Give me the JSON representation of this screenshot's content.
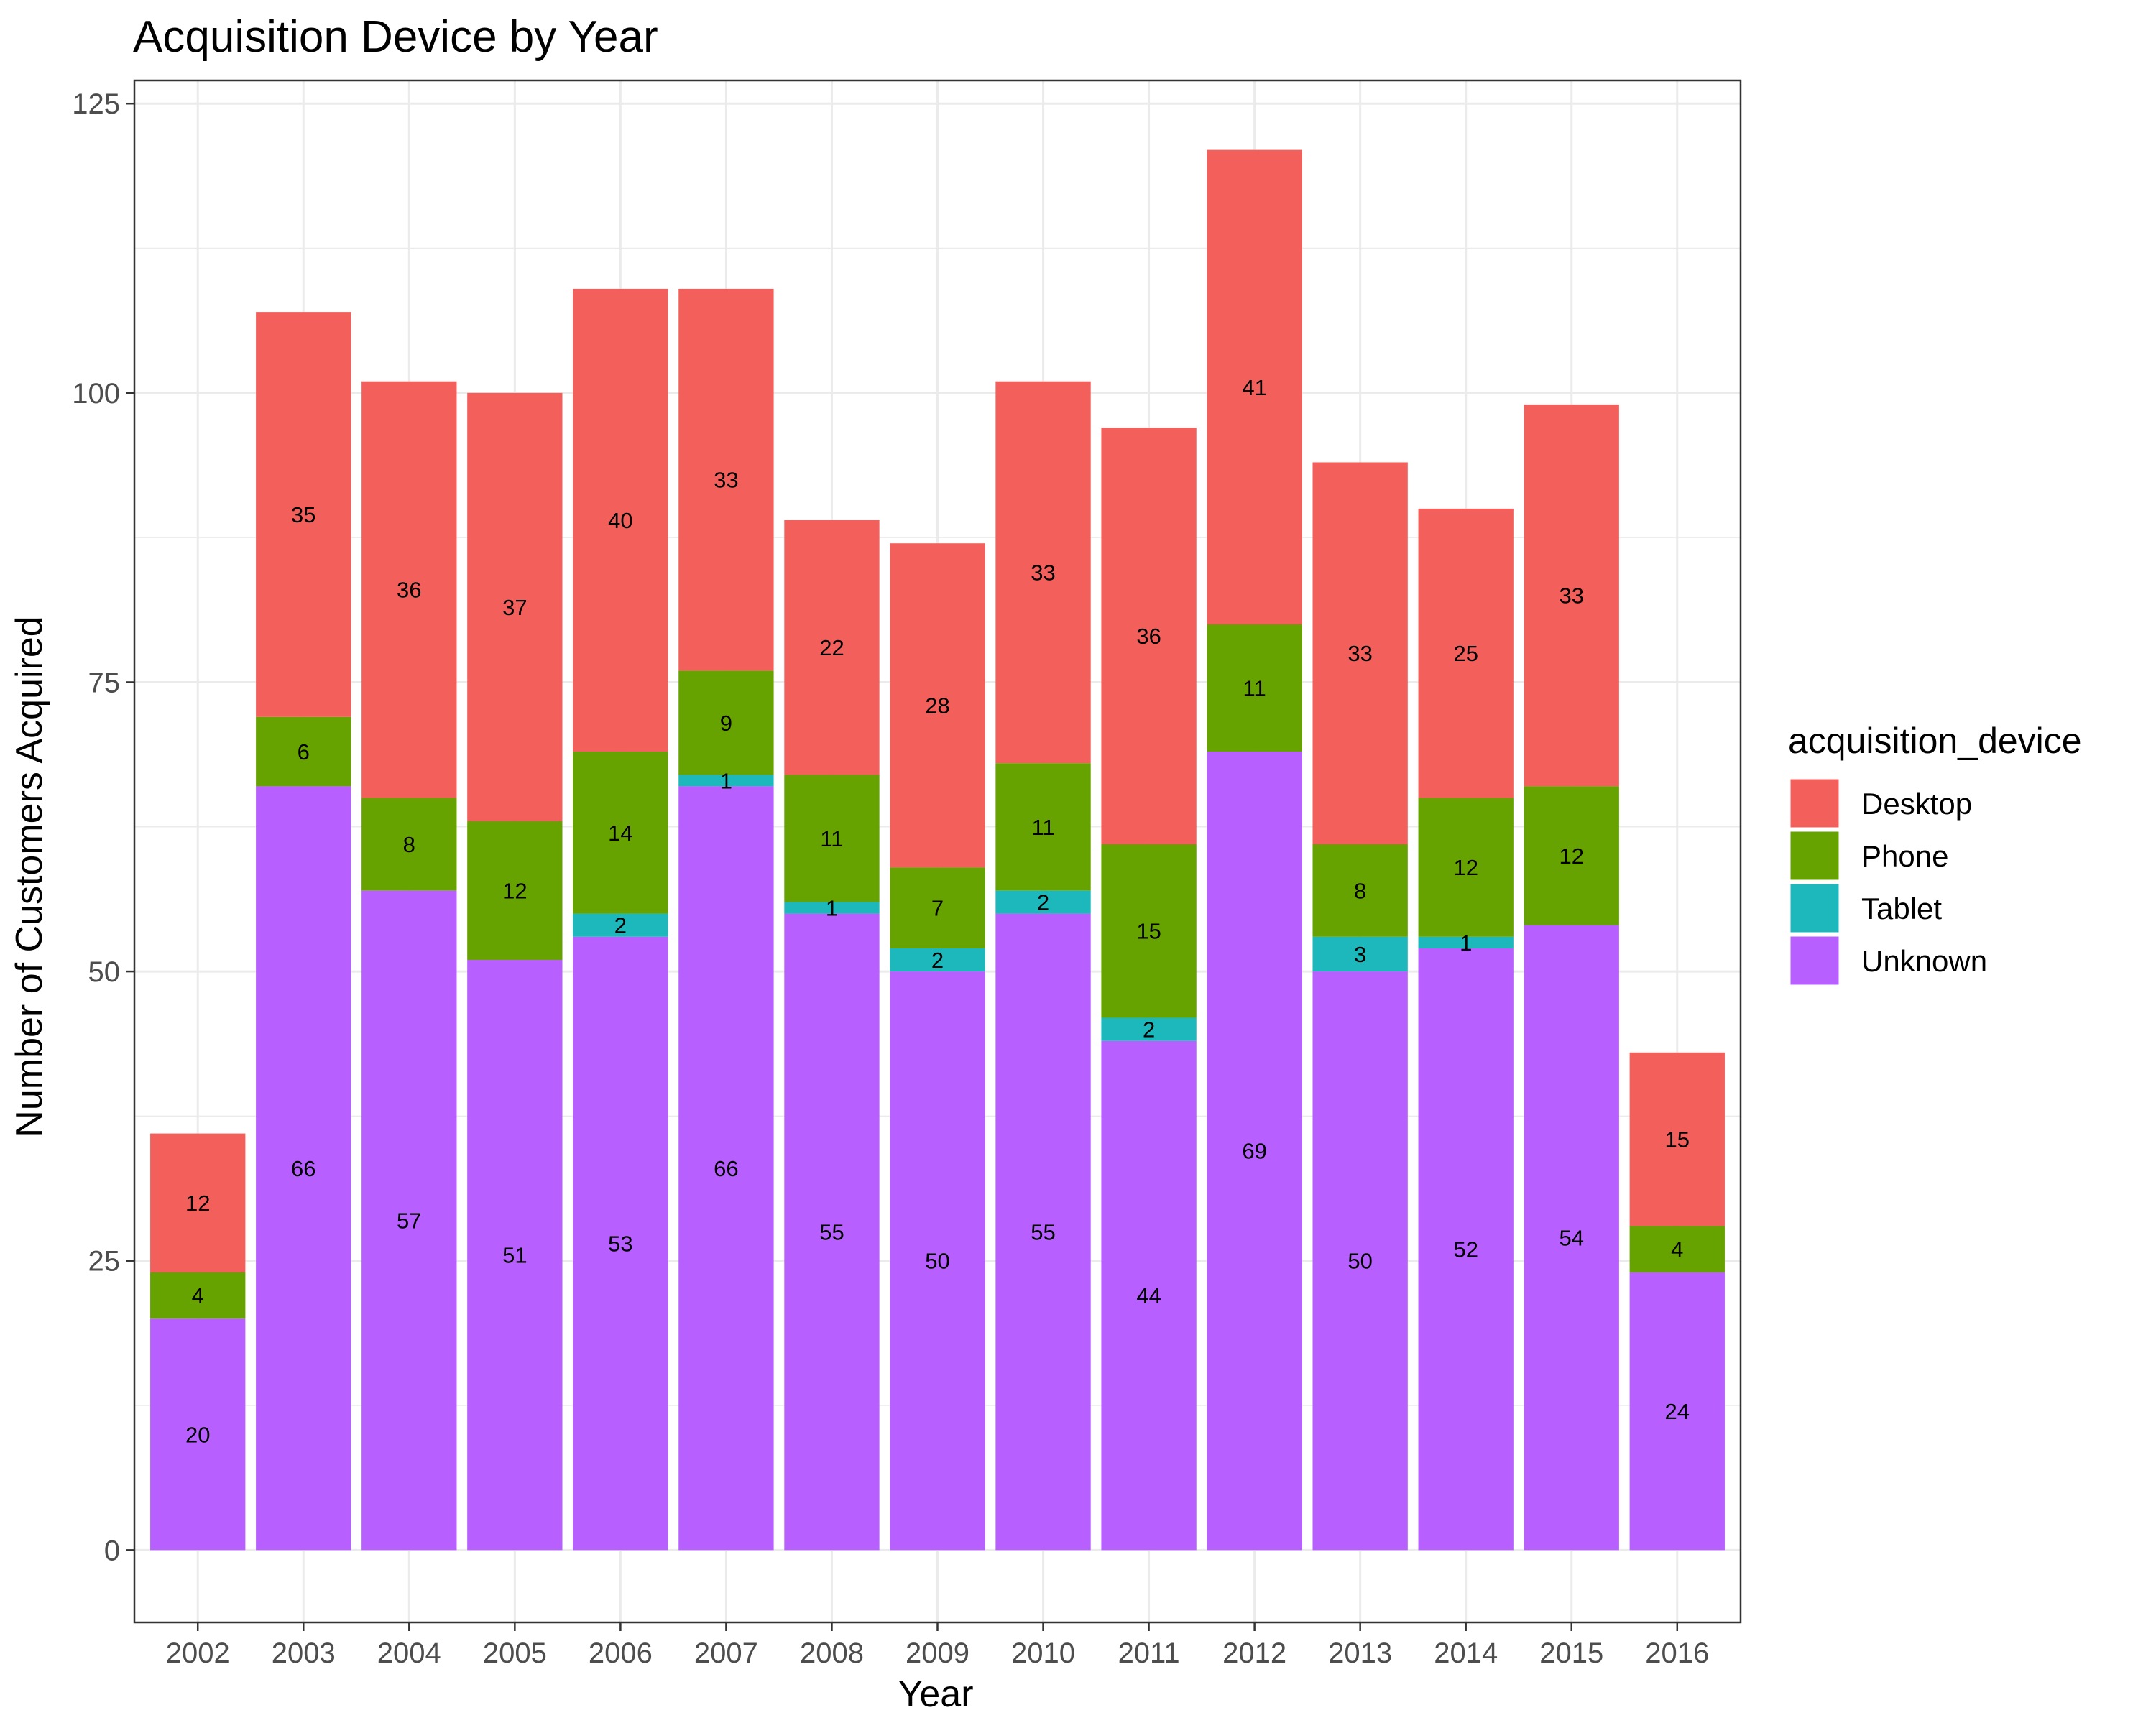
{
  "chart_data": {
    "type": "bar",
    "stacked": true,
    "title": "Acquisition Device by Year",
    "xlabel": "Year",
    "ylabel": "Number of Customers Acquired",
    "ylim": [
      -6.25,
      127
    ],
    "yticks": [
      0,
      25,
      50,
      75,
      100,
      125
    ],
    "grid": true,
    "legend_title": "acquisition_device",
    "legend_position": "right",
    "categories": [
      "2002",
      "2003",
      "2004",
      "2005",
      "2006",
      "2007",
      "2008",
      "2009",
      "2010",
      "2011",
      "2012",
      "2013",
      "2014",
      "2015",
      "2016"
    ],
    "series": [
      {
        "name": "Unknown",
        "color": "#B75FFF",
        "values": [
          20,
          66,
          57,
          51,
          53,
          66,
          55,
          50,
          55,
          44,
          69,
          50,
          52,
          54,
          24
        ]
      },
      {
        "name": "Tablet",
        "color": "#1DB8BB",
        "values": [
          0,
          0,
          0,
          0,
          2,
          1,
          1,
          2,
          2,
          2,
          0,
          3,
          1,
          0,
          0
        ]
      },
      {
        "name": "Phone",
        "color": "#66A300",
        "values": [
          4,
          6,
          8,
          12,
          14,
          9,
          11,
          7,
          11,
          15,
          11,
          8,
          12,
          12,
          4
        ]
      },
      {
        "name": "Desktop",
        "color": "#F3605C",
        "values": [
          12,
          35,
          36,
          37,
          40,
          33,
          22,
          28,
          33,
          36,
          41,
          33,
          25,
          33,
          15
        ]
      }
    ],
    "legend_order": [
      "Desktop",
      "Phone",
      "Tablet",
      "Unknown"
    ]
  }
}
